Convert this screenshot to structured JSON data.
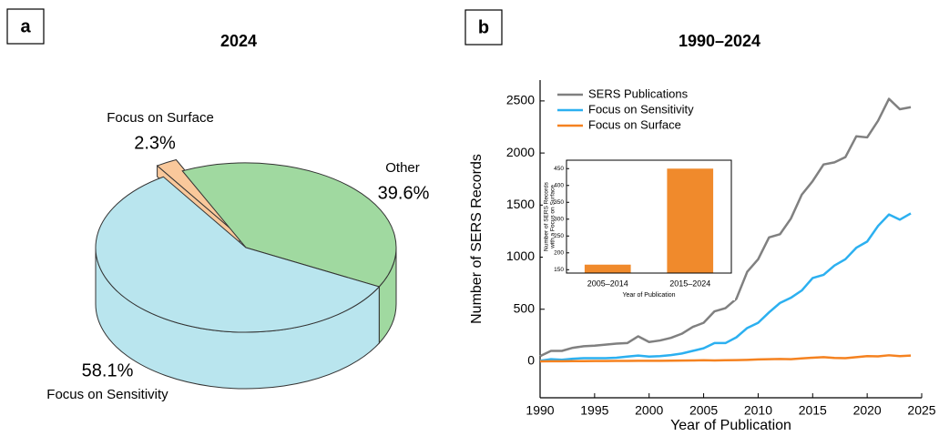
{
  "chart_data": [
    {
      "type": "pie",
      "panel_label": "a",
      "title": "2024",
      "categories": [
        "Focus on Surface",
        "Other",
        "Focus on Sensitivity"
      ],
      "values": [
        2.3,
        39.6,
        58.1
      ],
      "value_labels": [
        "2.3%",
        "39.6%",
        "58.1%"
      ],
      "colors": [
        "#f9c89b",
        "#a0d9a0",
        "#b9e5ee"
      ]
    },
    {
      "type": "line",
      "panel_label": "b",
      "title": "1990–2024",
      "xlabel": "Year of Publication",
      "ylabel": "Number of SERS Records",
      "x": [
        1990,
        1991,
        1992,
        1993,
        1994,
        1995,
        1996,
        1997,
        1998,
        1999,
        2000,
        2001,
        2002,
        2003,
        2004,
        2005,
        2006,
        2007,
        2008,
        2009,
        2010,
        2011,
        2012,
        2013,
        2014,
        2015,
        2016,
        2017,
        2018,
        2019,
        2020,
        2021,
        2022,
        2023,
        2024
      ],
      "xlim": [
        1990,
        2025
      ],
      "xticks": [
        1990,
        1995,
        2000,
        2005,
        2010,
        2015,
        2020,
        2025
      ],
      "ylim": [
        -350,
        2700
      ],
      "yticks": [
        0,
        500,
        1000,
        1500,
        2000,
        2500
      ],
      "legend": "upper left",
      "series": [
        {
          "name": "SERS Publications",
          "color": "#808080",
          "values": [
            50,
            100,
            100,
            130,
            145,
            150,
            160,
            170,
            175,
            240,
            185,
            200,
            225,
            265,
            330,
            370,
            480,
            510,
            600,
            860,
            980,
            1190,
            1220,
            1370,
            1600,
            1730,
            1890,
            1910,
            1960,
            2160,
            2150,
            2310,
            2520,
            2420,
            2440
          ]
        },
        {
          "name": "Focus on Sensitivity",
          "color": "#2cb0f0",
          "values": [
            5,
            20,
            15,
            25,
            30,
            30,
            30,
            35,
            45,
            55,
            45,
            50,
            60,
            75,
            100,
            125,
            175,
            175,
            230,
            320,
            370,
            470,
            560,
            610,
            680,
            800,
            830,
            920,
            980,
            1090,
            1150,
            1300,
            1410,
            1360,
            1420
          ]
        },
        {
          "name": "Focus on Surface",
          "color": "#f58220",
          "values": [
            0,
            1,
            1,
            2,
            2,
            3,
            3,
            4,
            4,
            5,
            5,
            5,
            6,
            7,
            8,
            10,
            8,
            10,
            12,
            14,
            18,
            20,
            22,
            20,
            28,
            35,
            40,
            32,
            30,
            40,
            50,
            48,
            58,
            50,
            55
          ]
        }
      ]
    },
    {
      "type": "bar",
      "xlabel": "Year of Publication",
      "ylabel": [
        "Number of SERS Records",
        "with a Focus on Surface"
      ],
      "categories": [
        "2005–2014",
        "2015–2024"
      ],
      "values": [
        165,
        450
      ],
      "color": "#f08a2c",
      "ylim": [
        140,
        475
      ],
      "yticks": [
        150,
        200,
        250,
        300,
        350,
        400,
        450
      ]
    }
  ]
}
